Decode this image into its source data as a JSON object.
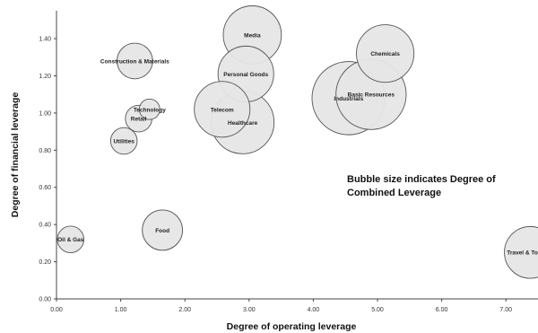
{
  "chart_data": {
    "type": "bubble",
    "xlabel": "Degree of operating leverage",
    "ylabel": "Degree of financial leverage",
    "xlim": [
      0,
      7.5
    ],
    "ylim": [
      0,
      1.55
    ],
    "x_ticks": [
      "0.00",
      "1.00",
      "2.00",
      "3.00",
      "4.00",
      "5.00",
      "6.00",
      "7.00"
    ],
    "y_ticks": [
      "0.00",
      "0.20",
      "0.40",
      "0.60",
      "0.80",
      "1.00",
      "1.20",
      "1.40"
    ],
    "grid": false,
    "annotation": "Bubble size indicates Degree of Combined Leverage",
    "points": [
      {
        "label": "Oil & Gas",
        "x": 0.22,
        "y": 0.32,
        "size": 1.0
      },
      {
        "label": "Food",
        "x": 1.65,
        "y": 0.37,
        "size": 2.3
      },
      {
        "label": "Utilities",
        "x": 1.05,
        "y": 0.85,
        "size": 1.0
      },
      {
        "label": "Retail",
        "x": 1.28,
        "y": 0.97,
        "size": 1.0
      },
      {
        "label": "Technology",
        "x": 1.45,
        "y": 1.02,
        "size": 0.6
      },
      {
        "label": "Construction & Materials",
        "x": 1.22,
        "y": 1.28,
        "size": 1.8
      },
      {
        "label": "Media",
        "x": 3.05,
        "y": 1.42,
        "size": 4.8
      },
      {
        "label": "Personal Goods",
        "x": 2.95,
        "y": 1.21,
        "size": 4.4
      },
      {
        "label": "Telecom",
        "x": 2.58,
        "y": 1.02,
        "size": 4.4
      },
      {
        "label": "Healthcare",
        "x": 2.9,
        "y": 0.95,
        "size": 5.6
      },
      {
        "label": "Basic Resources",
        "x": 4.9,
        "y": 1.1,
        "size": 7.0
      },
      {
        "label": "Chemicals",
        "x": 5.12,
        "y": 1.32,
        "size": 4.7
      },
      {
        "label": "Industrials",
        "x": 4.55,
        "y": 1.08,
        "size": 7.6
      },
      {
        "label": "Travel & Tourism",
        "x": 7.38,
        "y": 0.25,
        "size": 3.8
      }
    ]
  }
}
